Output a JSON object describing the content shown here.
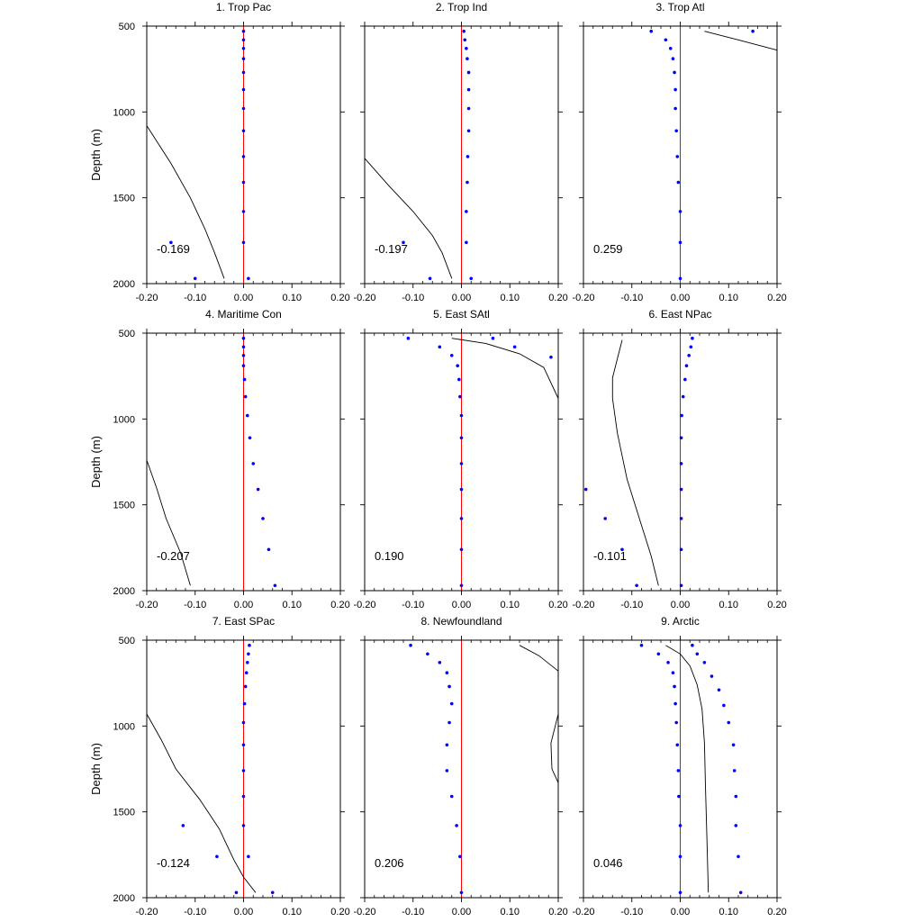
{
  "chart_data": [
    {
      "type": "scatter",
      "title": "1. Trop Pac",
      "ylabel": "Depth (m)",
      "xlim": [
        -0.2,
        0.2
      ],
      "ylim": [
        500,
        2000
      ],
      "y_reversed": true,
      "x_ticks": [
        "-0.20",
        "-0.10",
        "0.00",
        "0.10",
        "0.20"
      ],
      "y_ticks": [
        "500",
        "1000",
        "1500",
        "2000"
      ],
      "annotation": "-0.169",
      "colors": {
        "points": "#0000ff",
        "zero_line": "#ff0000",
        "curve": "#000000"
      },
      "zero_line": 0,
      "points": [
        [
          0.0,
          530
        ],
        [
          0.0,
          580
        ],
        [
          0.0,
          630
        ],
        [
          0.0,
          690
        ],
        [
          0.0,
          770
        ],
        [
          0.0,
          870
        ],
        [
          0.0,
          980
        ],
        [
          0.0,
          1110
        ],
        [
          0.0,
          1260
        ],
        [
          0.0,
          1410
        ],
        [
          0.0,
          1580
        ],
        [
          0.0,
          1760
        ],
        [
          -0.15,
          1760
        ],
        [
          -0.1,
          1970
        ],
        [
          0.01,
          1970
        ]
      ],
      "curve": [
        [
          -0.2,
          1080
        ],
        [
          -0.15,
          1300
        ],
        [
          -0.11,
          1500
        ],
        [
          -0.08,
          1680
        ],
        [
          -0.06,
          1820
        ],
        [
          -0.04,
          1970
        ]
      ]
    },
    {
      "type": "scatter",
      "title": "2. Trop Ind",
      "ylabel": "",
      "xlim": [
        -0.2,
        0.2
      ],
      "ylim": [
        500,
        2000
      ],
      "y_reversed": true,
      "x_ticks": [
        "-0.20",
        "-0.10",
        "0.00",
        "0.10",
        "0.20"
      ],
      "y_ticks": [],
      "annotation": "-0.197",
      "colors": {
        "points": "#0000ff",
        "zero_line": "#ff0000",
        "curve": "#000000"
      },
      "zero_line": 0,
      "points": [
        [
          0.005,
          530
        ],
        [
          0.007,
          580
        ],
        [
          0.01,
          630
        ],
        [
          0.012,
          690
        ],
        [
          0.015,
          770
        ],
        [
          0.015,
          870
        ],
        [
          0.015,
          980
        ],
        [
          0.015,
          1110
        ],
        [
          0.013,
          1260
        ],
        [
          0.012,
          1410
        ],
        [
          0.01,
          1580
        ],
        [
          0.01,
          1760
        ],
        [
          -0.12,
          1760
        ],
        [
          -0.065,
          1970
        ],
        [
          0.02,
          1970
        ]
      ],
      "curve": [
        [
          -0.2,
          1270
        ],
        [
          -0.15,
          1430
        ],
        [
          -0.1,
          1580
        ],
        [
          -0.06,
          1720
        ],
        [
          -0.04,
          1820
        ],
        [
          -0.02,
          1970
        ]
      ]
    },
    {
      "type": "scatter",
      "title": "3. Trop Atl",
      "ylabel": "",
      "xlim": [
        -0.2,
        0.2
      ],
      "ylim": [
        500,
        2000
      ],
      "y_reversed": true,
      "x_ticks": [
        "-0.20",
        "-0.10",
        "0.00",
        "0.10",
        "0.20"
      ],
      "y_ticks": [],
      "annotation": "0.259",
      "colors": {
        "points": "#0000ff",
        "zero_line": "#ff0000",
        "curve": "#000000"
      },
      "zero_line": 0,
      "points": [
        [
          -0.06,
          530
        ],
        [
          -0.03,
          580
        ],
        [
          -0.02,
          630
        ],
        [
          -0.015,
          690
        ],
        [
          -0.012,
          770
        ],
        [
          -0.01,
          870
        ],
        [
          -0.01,
          980
        ],
        [
          -0.008,
          1110
        ],
        [
          -0.006,
          1260
        ],
        [
          -0.004,
          1410
        ],
        [
          0.0,
          1580
        ],
        [
          0.0,
          1760
        ],
        [
          0.0,
          1970
        ],
        [
          0.15,
          530
        ]
      ],
      "curve": [
        [
          0.05,
          530
        ],
        [
          0.12,
          580
        ],
        [
          0.2,
          640
        ]
      ]
    },
    {
      "type": "scatter",
      "title": "4. Maritime Con",
      "ylabel": "Depth (m)",
      "xlim": [
        -0.2,
        0.2
      ],
      "ylim": [
        500,
        2000
      ],
      "y_reversed": true,
      "x_ticks": [
        "-0.20",
        "-0.10",
        "0.00",
        "0.10",
        "0.20"
      ],
      "y_ticks": [
        "500",
        "1000",
        "1500",
        "2000"
      ],
      "annotation": "-0.207",
      "colors": {
        "points": "#0000ff",
        "zero_line": "#ff0000",
        "curve": "#000000"
      },
      "zero_line": 0,
      "points": [
        [
          0.0,
          530
        ],
        [
          0.0,
          580
        ],
        [
          0.0,
          630
        ],
        [
          0.0,
          690
        ],
        [
          0.002,
          770
        ],
        [
          0.004,
          870
        ],
        [
          0.008,
          980
        ],
        [
          0.013,
          1110
        ],
        [
          0.02,
          1260
        ],
        [
          0.03,
          1410
        ],
        [
          0.04,
          1580
        ],
        [
          0.052,
          1760
        ],
        [
          0.065,
          1970
        ]
      ],
      "curve": [
        [
          -0.2,
          1240
        ],
        [
          -0.18,
          1400
        ],
        [
          -0.16,
          1580
        ],
        [
          -0.13,
          1780
        ],
        [
          -0.11,
          1970
        ]
      ]
    },
    {
      "type": "scatter",
      "title": "5. East SAtl",
      "ylabel": "",
      "xlim": [
        -0.2,
        0.2
      ],
      "ylim": [
        500,
        2000
      ],
      "y_reversed": true,
      "x_ticks": [
        "-0.20",
        "-0.10",
        "0.00",
        "0.10",
        "0.20"
      ],
      "y_ticks": [],
      "annotation": "0.190",
      "colors": {
        "points": "#0000ff",
        "zero_line": "#ff0000",
        "curve": "#000000"
      },
      "zero_line": 0,
      "points": [
        [
          -0.11,
          530
        ],
        [
          -0.045,
          580
        ],
        [
          -0.02,
          630
        ],
        [
          -0.008,
          690
        ],
        [
          -0.005,
          770
        ],
        [
          -0.003,
          870
        ],
        [
          0.0,
          980
        ],
        [
          0.0,
          1110
        ],
        [
          0.0,
          1260
        ],
        [
          0.0,
          1410
        ],
        [
          0.0,
          1580
        ],
        [
          0.0,
          1760
        ],
        [
          0.0,
          1970
        ],
        [
          0.065,
          530
        ],
        [
          0.11,
          580
        ],
        [
          0.185,
          640
        ]
      ],
      "curve": [
        [
          -0.02,
          530
        ],
        [
          0.05,
          560
        ],
        [
          0.12,
          620
        ],
        [
          0.17,
          700
        ],
        [
          0.2,
          880
        ]
      ]
    },
    {
      "type": "scatter",
      "title": "6. East NPac",
      "ylabel": "",
      "xlim": [
        -0.2,
        0.2
      ],
      "ylim": [
        500,
        2000
      ],
      "y_reversed": true,
      "x_ticks": [
        "-0.20",
        "-0.10",
        "0.00",
        "0.10",
        "0.20"
      ],
      "y_ticks": [],
      "annotation": "-0.101",
      "colors": {
        "points": "#0000ff",
        "zero_line": "#ff0000",
        "curve": "#000000"
      },
      "zero_line": 0,
      "points": [
        [
          0.025,
          530
        ],
        [
          0.022,
          580
        ],
        [
          0.018,
          630
        ],
        [
          0.013,
          690
        ],
        [
          0.01,
          770
        ],
        [
          0.006,
          870
        ],
        [
          0.003,
          980
        ],
        [
          0.002,
          1110
        ],
        [
          0.002,
          1260
        ],
        [
          0.002,
          1410
        ],
        [
          0.002,
          1580
        ],
        [
          0.002,
          1760
        ],
        [
          0.002,
          1970
        ],
        [
          -0.195,
          1410
        ],
        [
          -0.155,
          1580
        ],
        [
          -0.12,
          1760
        ],
        [
          -0.09,
          1970
        ]
      ],
      "curve": [
        [
          -0.12,
          540
        ],
        [
          -0.13,
          650
        ],
        [
          -0.14,
          760
        ],
        [
          -0.14,
          880
        ],
        [
          -0.13,
          1080
        ],
        [
          -0.11,
          1350
        ],
        [
          -0.08,
          1620
        ],
        [
          -0.06,
          1800
        ],
        [
          -0.045,
          1970
        ]
      ]
    },
    {
      "type": "scatter",
      "title": "7. East SPac",
      "ylabel": "Depth (m)",
      "xlim": [
        -0.2,
        0.2
      ],
      "ylim": [
        500,
        2000
      ],
      "y_reversed": true,
      "x_ticks": [
        "-0.20",
        "-0.10",
        "0.00",
        "0.10",
        "0.20"
      ],
      "y_ticks": [
        "500",
        "1000",
        "1500",
        "2000"
      ],
      "annotation": "-0.124",
      "colors": {
        "points": "#0000ff",
        "zero_line": "#ff0000",
        "curve": "#000000"
      },
      "zero_line": 0,
      "points": [
        [
          0.012,
          530
        ],
        [
          0.01,
          580
        ],
        [
          0.008,
          630
        ],
        [
          0.006,
          690
        ],
        [
          0.004,
          770
        ],
        [
          0.002,
          870
        ],
        [
          0.0,
          980
        ],
        [
          0.0,
          1110
        ],
        [
          0.0,
          1260
        ],
        [
          0.0,
          1410
        ],
        [
          0.0,
          1580
        ],
        [
          0.01,
          1760
        ],
        [
          -0.125,
          1580
        ],
        [
          -0.055,
          1760
        ],
        [
          -0.015,
          1970
        ],
        [
          0.06,
          1970
        ]
      ],
      "curve": [
        [
          -0.2,
          930
        ],
        [
          -0.17,
          1080
        ],
        [
          -0.14,
          1250
        ],
        [
          -0.09,
          1430
        ],
        [
          -0.05,
          1600
        ],
        [
          -0.02,
          1780
        ],
        [
          0.0,
          1880
        ],
        [
          0.025,
          1970
        ]
      ]
    },
    {
      "type": "scatter",
      "title": "8. Newfoundland",
      "ylabel": "",
      "xlim": [
        -0.2,
        0.2
      ],
      "ylim": [
        500,
        2000
      ],
      "y_reversed": true,
      "x_ticks": [
        "-0.20",
        "-0.10",
        "0.00",
        "0.10",
        "0.20"
      ],
      "y_ticks": [],
      "annotation": "0.206",
      "colors": {
        "points": "#0000ff",
        "zero_line": "#ff0000",
        "curve": "#000000"
      },
      "zero_line": 0,
      "points": [
        [
          -0.105,
          530
        ],
        [
          -0.07,
          580
        ],
        [
          -0.045,
          630
        ],
        [
          -0.03,
          690
        ],
        [
          -0.025,
          770
        ],
        [
          -0.02,
          870
        ],
        [
          -0.025,
          980
        ],
        [
          -0.03,
          1110
        ],
        [
          -0.03,
          1260
        ],
        [
          -0.02,
          1410
        ],
        [
          -0.01,
          1580
        ],
        [
          -0.003,
          1760
        ],
        [
          0.0,
          1970
        ]
      ],
      "curve": [
        [
          0.12,
          530
        ],
        [
          0.16,
          590
        ],
        [
          0.2,
          680
        ],
        [
          0.2,
          930
        ],
        [
          0.185,
          1100
        ],
        [
          0.187,
          1250
        ],
        [
          0.2,
          1330
        ]
      ]
    },
    {
      "type": "scatter",
      "title": "9. Arctic",
      "ylabel": "",
      "xlim": [
        -0.2,
        0.2
      ],
      "ylim": [
        500,
        2000
      ],
      "y_reversed": true,
      "x_ticks": [
        "-0.20",
        "-0.10",
        "0.00",
        "0.10",
        "0.20"
      ],
      "y_ticks": [],
      "annotation": "0.046",
      "colors": {
        "points": "#0000ff",
        "zero_line": "#ff0000",
        "curve": "#000000"
      },
      "zero_line": 0,
      "points": [
        [
          -0.08,
          530
        ],
        [
          -0.045,
          580
        ],
        [
          -0.025,
          630
        ],
        [
          -0.015,
          690
        ],
        [
          -0.012,
          770
        ],
        [
          -0.01,
          870
        ],
        [
          -0.008,
          980
        ],
        [
          -0.006,
          1110
        ],
        [
          -0.004,
          1260
        ],
        [
          -0.003,
          1410
        ],
        [
          0.0,
          1580
        ],
        [
          0.0,
          1760
        ],
        [
          0.0,
          1970
        ],
        [
          0.025,
          530
        ],
        [
          0.035,
          580
        ],
        [
          0.05,
          630
        ],
        [
          0.065,
          710
        ],
        [
          0.08,
          790
        ],
        [
          0.09,
          880
        ],
        [
          0.1,
          980
        ],
        [
          0.11,
          1110
        ],
        [
          0.112,
          1260
        ],
        [
          0.115,
          1410
        ],
        [
          0.115,
          1580
        ],
        [
          0.12,
          1760
        ],
        [
          0.125,
          1970
        ]
      ],
      "curve": [
        [
          -0.03,
          530
        ],
        [
          0.0,
          580
        ],
        [
          0.02,
          650
        ],
        [
          0.035,
          760
        ],
        [
          0.045,
          900
        ],
        [
          0.05,
          1100
        ],
        [
          0.052,
          1350
        ],
        [
          0.055,
          1650
        ],
        [
          0.058,
          1970
        ]
      ]
    }
  ]
}
